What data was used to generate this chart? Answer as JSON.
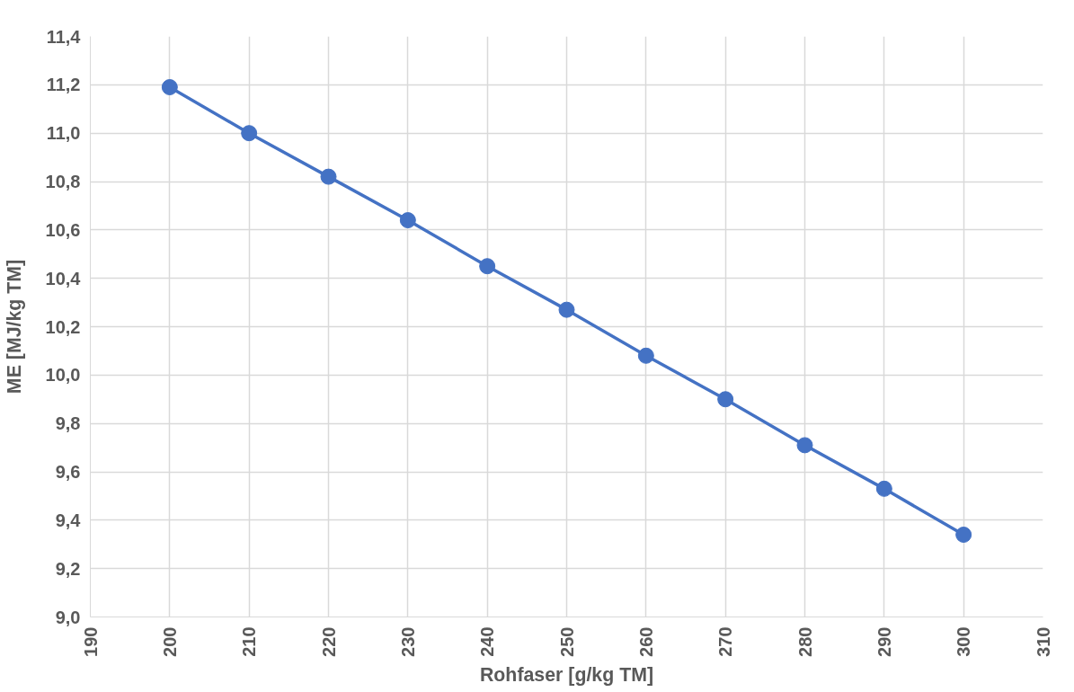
{
  "chart_data": {
    "type": "line",
    "xlabel": "Rohfaser [g/kg TM]",
    "ylabel": "ME [MJ/kg TM]",
    "x": [
      200,
      210,
      220,
      230,
      240,
      250,
      260,
      270,
      280,
      290,
      300
    ],
    "series": [
      {
        "color": "#4472c4",
        "values": [
          11.19,
          11.0,
          10.82,
          10.64,
          10.45,
          10.27,
          10.08,
          9.9,
          9.71,
          9.53,
          9.34
        ]
      }
    ],
    "xlim": [
      190,
      310
    ],
    "xticks": [
      190,
      200,
      210,
      220,
      230,
      240,
      250,
      260,
      270,
      280,
      290,
      300,
      310
    ],
    "ylim": [
      9.0,
      11.4
    ],
    "yticks": [
      {
        "value": 9.0,
        "label": "9,0"
      },
      {
        "value": 9.2,
        "label": "9,2"
      },
      {
        "value": 9.4,
        "label": "9,4"
      },
      {
        "value": 9.6,
        "label": "9,6"
      },
      {
        "value": 9.8,
        "label": "9,8"
      },
      {
        "value": 10.0,
        "label": "10,0"
      },
      {
        "value": 10.2,
        "label": "10,2"
      },
      {
        "value": 10.4,
        "label": "10,4"
      },
      {
        "value": 10.6,
        "label": "10,6"
      },
      {
        "value": 10.8,
        "label": "10,8"
      },
      {
        "value": 11.0,
        "label": "11,0"
      },
      {
        "value": 11.2,
        "label": "11,2"
      },
      {
        "value": 11.4,
        "label": "11,4"
      }
    ],
    "grid": true,
    "marker": "circle",
    "line_style": "solid"
  }
}
